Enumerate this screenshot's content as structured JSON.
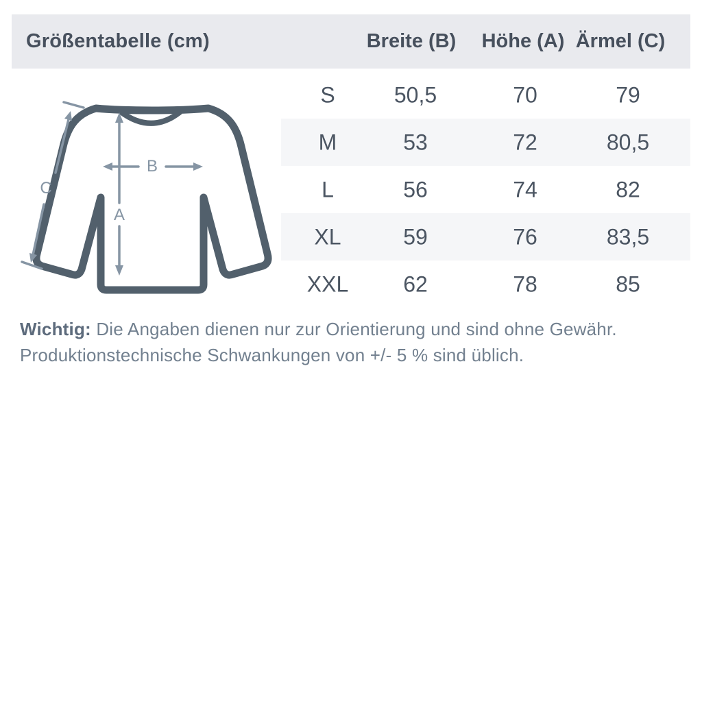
{
  "header": {
    "title": "Größentabelle (cm)",
    "columns": [
      "Breite (B)",
      "Höhe (A)",
      "Ärmel (C)"
    ]
  },
  "chart_data": {
    "type": "table",
    "title": "Größentabelle (cm)",
    "columns": [
      "",
      "Breite (B)",
      "Höhe (A)",
      "Ärmel (C)"
    ],
    "rows": [
      [
        "S",
        "50,5",
        "70",
        "79"
      ],
      [
        "M",
        "53",
        "72",
        "80,5"
      ],
      [
        "L",
        "56",
        "74",
        "82"
      ],
      [
        "XL",
        "59",
        "76",
        "83,5"
      ],
      [
        "XXL",
        "62",
        "78",
        "85"
      ]
    ]
  },
  "diagram": {
    "labels": {
      "a": "A",
      "b": "B",
      "c": "C"
    }
  },
  "note": {
    "bold": "Wichtig:",
    "line1": " Die Angaben dienen nur zur Orientierung und sind ohne Gewähr.",
    "line2": "Produktionstechnische Schwankungen von +/- 5 % sind üblich."
  },
  "colors": {
    "header_bg": "#e9eaee",
    "stripe_bg": "#f5f6f8",
    "dark_text": "#47505d",
    "cell_text": "#4b5562",
    "sweater_outline": "#52606c",
    "arrow": "#8695a4",
    "note_text": "#72808f"
  }
}
